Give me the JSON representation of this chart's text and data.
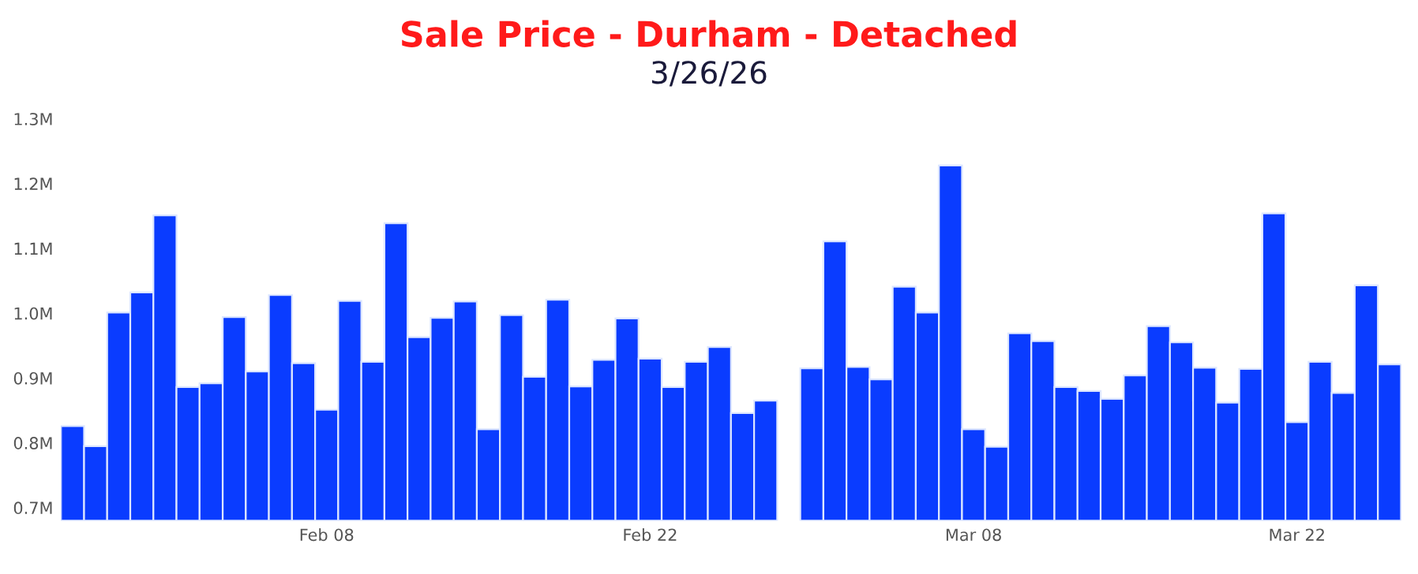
{
  "chart_data": {
    "type": "bar",
    "title": "Sale Price - Durham - Detached",
    "subtitle": "3/26/26",
    "categories": [
      null,
      null,
      null,
      null,
      null,
      null,
      null,
      null,
      null,
      null,
      null,
      "Feb 08",
      null,
      null,
      null,
      null,
      null,
      null,
      null,
      null,
      null,
      null,
      null,
      null,
      null,
      "Feb 22",
      null,
      null,
      null,
      null,
      null,
      null,
      null,
      null,
      null,
      null,
      null,
      null,
      null,
      "Mar 08",
      null,
      null,
      null,
      null,
      null,
      null,
      null,
      null,
      null,
      null,
      null,
      null,
      null,
      "Mar 22",
      null,
      null,
      null,
      null
    ],
    "values": [
      826000,
      795000,
      1001000,
      1032000,
      1151000,
      886000,
      892000,
      994000,
      910000,
      1028000,
      923000,
      851000,
      1019000,
      925000,
      1139000,
      963000,
      993000,
      1018000,
      821000,
      997000,
      902000,
      1021000,
      887000,
      928000,
      992000,
      930000,
      886000,
      925000,
      948000,
      846000,
      865000,
      null,
      915000,
      1111000,
      917000,
      898000,
      1041000,
      1001000,
      1228000,
      821000,
      794000,
      969000,
      957000,
      886000,
      880000,
      868000,
      904000,
      980000,
      955000,
      916000,
      862000,
      914000,
      1154000,
      832000,
      925000,
      877000,
      1043000,
      921000
    ],
    "color": "#0a3cff",
    "ylim": [
      680000,
      1300000
    ],
    "yticks": [
      {
        "value": 700000,
        "label": "0.7M"
      },
      {
        "value": 800000,
        "label": "0.8M"
      },
      {
        "value": 900000,
        "label": "0.9M"
      },
      {
        "value": 1000000,
        "label": "1.0M"
      },
      {
        "value": 1100000,
        "label": "1.1M"
      },
      {
        "value": 1200000,
        "label": "1.2M"
      },
      {
        "value": 1300000,
        "label": "1.3M"
      }
    ],
    "grid": false
  }
}
